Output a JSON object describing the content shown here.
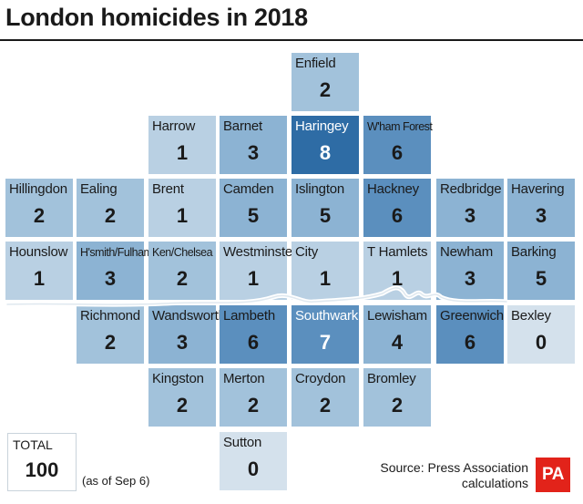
{
  "title": "London homicides in 2018",
  "colors": {
    "scale": [
      "#d4e1ec",
      "#b9d0e3",
      "#a2c2db",
      "#8cb3d3",
      "#5b8fbe",
      "#2e6ca5"
    ]
  },
  "boroughs": [
    {
      "name": "Enfield",
      "value": 2,
      "row": 0,
      "col": 4
    },
    {
      "name": "Harrow",
      "value": 1,
      "row": 1,
      "col": 2
    },
    {
      "name": "Barnet",
      "value": 3,
      "row": 1,
      "col": 3
    },
    {
      "name": "Haringey",
      "value": 8,
      "row": 1,
      "col": 4
    },
    {
      "name": "W'ham Forest",
      "value": 6,
      "row": 1,
      "col": 5,
      "small": true
    },
    {
      "name": "Hillingdon",
      "value": 2,
      "row": 2,
      "col": 0
    },
    {
      "name": "Ealing",
      "value": 2,
      "row": 2,
      "col": 1
    },
    {
      "name": "Brent",
      "value": 1,
      "row": 2,
      "col": 2
    },
    {
      "name": "Camden",
      "value": 5,
      "row": 2,
      "col": 3
    },
    {
      "name": "Islington",
      "value": 5,
      "row": 2,
      "col": 4
    },
    {
      "name": "Hackney",
      "value": 6,
      "row": 2,
      "col": 5
    },
    {
      "name": "Redbridge",
      "value": 3,
      "row": 2,
      "col": 6
    },
    {
      "name": "Havering",
      "value": 3,
      "row": 2,
      "col": 7
    },
    {
      "name": "Hounslow",
      "value": 1,
      "row": 3,
      "col": 0
    },
    {
      "name": "H'smith/Fulham",
      "value": 3,
      "row": 3,
      "col": 1,
      "small": true
    },
    {
      "name": "Ken/Chelsea",
      "value": 2,
      "row": 3,
      "col": 2,
      "small": true
    },
    {
      "name": "Westminster",
      "value": 1,
      "row": 3,
      "col": 3
    },
    {
      "name": "City",
      "value": 1,
      "row": 3,
      "col": 4
    },
    {
      "name": "T Hamlets",
      "value": 1,
      "row": 3,
      "col": 5
    },
    {
      "name": "Newham",
      "value": 3,
      "row": 3,
      "col": 6
    },
    {
      "name": "Barking",
      "value": 5,
      "row": 3,
      "col": 7
    },
    {
      "name": "Richmond",
      "value": 2,
      "row": 4,
      "col": 1
    },
    {
      "name": "Wandsworth",
      "value": 3,
      "row": 4,
      "col": 2
    },
    {
      "name": "Lambeth",
      "value": 6,
      "row": 4,
      "col": 3
    },
    {
      "name": "Southwark",
      "value": 7,
      "row": 4,
      "col": 4
    },
    {
      "name": "Lewisham",
      "value": 4,
      "row": 4,
      "col": 5
    },
    {
      "name": "Greenwich",
      "value": 6,
      "row": 4,
      "col": 6
    },
    {
      "name": "Bexley",
      "value": 0,
      "row": 4,
      "col": 7
    },
    {
      "name": "Kingston",
      "value": 2,
      "row": 5,
      "col": 2
    },
    {
      "name": "Merton",
      "value": 2,
      "row": 5,
      "col": 3
    },
    {
      "name": "Croydon",
      "value": 2,
      "row": 5,
      "col": 4
    },
    {
      "name": "Bromley",
      "value": 2,
      "row": 5,
      "col": 5
    },
    {
      "name": "Sutton",
      "value": 0,
      "row": 6,
      "col": 3
    }
  ],
  "total": {
    "label": "TOTAL",
    "value": "100",
    "note": "(as of Sep 6)"
  },
  "source": {
    "line1": "Source: Press Association",
    "line2": "calculations"
  },
  "logo": "PA"
}
